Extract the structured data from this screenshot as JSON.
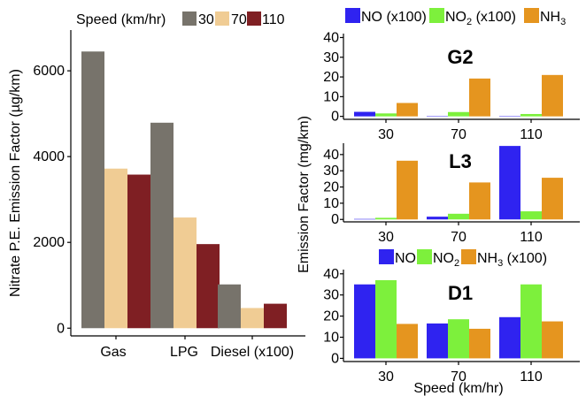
{
  "colors": {
    "speed30": "#77736b",
    "speed70": "#f0cc94",
    "speed110": "#7f1f23",
    "no": "#2f23f0",
    "no2": "#7df03c",
    "nh3": "#e5951f",
    "axis": "#000000"
  },
  "left_panel": {
    "legend_title": "Speed (km/hr)",
    "legend_items": [
      "30",
      "70",
      "110"
    ]
  },
  "right_panel": {
    "top_legend": [
      "NO (x100)",
      "NO2 (x100)",
      "NH3"
    ],
    "bottom_legend": [
      "NO",
      "NO2",
      "NH3 (x100)"
    ],
    "shared_ylabel": "Emission Factor (mg/km)",
    "shared_xlabel": "Speed (km/hr)"
  },
  "chart_data": [
    {
      "id": "nitrate",
      "type": "bar",
      "title": "",
      "xlabel": "",
      "ylabel": "Nitrate P.E. Emission Factor (µg/km)",
      "categories": [
        "Gas",
        "LPG",
        "Diesel (x100)"
      ],
      "series": [
        {
          "name": "30",
          "values": [
            6450,
            4790,
            1020
          ]
        },
        {
          "name": "70",
          "values": [
            3720,
            2580,
            470
          ]
        },
        {
          "name": "110",
          "values": [
            3580,
            1960,
            570
          ]
        }
      ],
      "ylim": [
        -180,
        6950
      ],
      "yticks": [
        0,
        2000,
        4000,
        6000
      ],
      "grid": false,
      "legend": "top"
    },
    {
      "id": "G2",
      "type": "bar",
      "title": "G2",
      "categories": [
        "30",
        "70",
        "110"
      ],
      "series": [
        {
          "name": "NO (x100)",
          "values": [
            2.3,
            0.2,
            0.2
          ]
        },
        {
          "name": "NO2 (x100)",
          "values": [
            1.5,
            2.2,
            1.2
          ]
        },
        {
          "name": "NH3",
          "values": [
            6.8,
            19.2,
            21.0
          ]
        }
      ],
      "ylim": [
        -1.5,
        42
      ],
      "yticks": [
        0,
        10,
        20,
        30,
        40
      ],
      "grid": false
    },
    {
      "id": "L3",
      "type": "bar",
      "title": "L3",
      "categories": [
        "30",
        "70",
        "110"
      ],
      "series": [
        {
          "name": "NO (x100)",
          "values": [
            0.3,
            1.7,
            45.3
          ]
        },
        {
          "name": "NO2 (x100)",
          "values": [
            1.0,
            3.5,
            5.0
          ]
        },
        {
          "name": "NH3",
          "values": [
            36.2,
            22.8,
            25.7
          ]
        }
      ],
      "ylim": [
        -1.5,
        47
      ],
      "yticks": [
        0,
        10,
        20,
        30,
        40
      ],
      "grid": false
    },
    {
      "id": "D1",
      "type": "bar",
      "title": "D1",
      "categories": [
        "30",
        "70",
        "110"
      ],
      "series": [
        {
          "name": "NO",
          "values": [
            35.0,
            16.5,
            19.5
          ]
        },
        {
          "name": "NO2",
          "values": [
            37.0,
            18.5,
            35.0
          ]
        },
        {
          "name": "NH3 (x100)",
          "values": [
            16.3,
            14.0,
            17.5
          ]
        }
      ],
      "ylim": [
        -1.5,
        42
      ],
      "yticks": [
        0,
        10,
        20,
        30,
        40
      ],
      "grid": false
    }
  ]
}
